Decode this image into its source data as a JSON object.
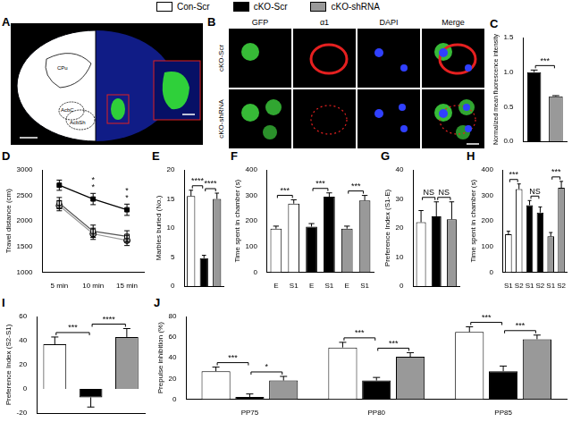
{
  "legend": [
    {
      "name": "Con-Scr",
      "color": "#ffffff"
    },
    {
      "name": "cKO-Scr",
      "color": "#000000"
    },
    {
      "name": "cKO-shRNA",
      "color": "#999999"
    }
  ],
  "images": [
    {
      "panel": "A",
      "labels": [
        "CPu",
        "AcbC",
        "AcbSh"
      ]
    },
    {
      "panel": "B",
      "columns": [
        "GFP",
        "α1",
        "DAPI",
        "Merge"
      ],
      "rows": [
        "cKO-Scr",
        "cKO-shRNA"
      ]
    }
  ],
  "chart_data": [
    {
      "panel": "C",
      "type": "bar",
      "y_label": "Normalized mean fluorescence intensity",
      "categories": [
        null,
        null
      ],
      "values": [
        1,
        0.65
      ],
      "errors": [
        0.03,
        0.01
      ],
      "colors": [
        "#000000",
        "#999999"
      ],
      "ylim": [
        0,
        1.5
      ],
      "yticks": [
        {
          "value": 0,
          "label": "0.0"
        },
        {
          "value": 0.5,
          "label": "0.5"
        },
        {
          "value": 1,
          "label": "1.0"
        },
        {
          "value": 1.5,
          "label": "1.5"
        }
      ],
      "grid": false,
      "tick_labels": "y",
      "annotations": [
        {
          "from": 0,
          "to": 1,
          "text": "***"
        }
      ]
    },
    {
      "panel": "D",
      "type": "line",
      "y_label": "Travel distance (cm)",
      "categories": [
        "5 min",
        "10 min",
        "15 min"
      ],
      "series": [
        {
          "name": "Con-Scr",
          "color": "#ffffff",
          "marker": "square",
          "values": [
            2350,
            1800,
            1700
          ],
          "errors": [
            110,
            120,
            110
          ]
        },
        {
          "name": "cKO-Scr",
          "color": "#000000",
          "marker": "square",
          "values": [
            2700,
            2430,
            2220
          ],
          "errors": [
            100,
            110,
            110
          ]
        },
        {
          "name": "cKO-shRNA",
          "color": "#999999",
          "marker": "circle",
          "values": [
            2300,
            1750,
            1620
          ],
          "errors": [
            100,
            110,
            100
          ]
        }
      ],
      "ylim": [
        1000,
        3000
      ],
      "yticks": [
        1000,
        1500,
        2000,
        2500,
        3000
      ],
      "grid": false,
      "annotations": [
        {
          "index": 1,
          "text": "*"
        },
        {
          "index": 1,
          "text": "*"
        },
        {
          "index": 2,
          "text": "*"
        },
        {
          "index": 2,
          "text": "*"
        }
      ]
    },
    {
      "panel": "E",
      "type": "bar",
      "y_label": "Marbles buried (No.)",
      "categories": [
        null,
        null,
        null
      ],
      "values": [
        15.5,
        4.8,
        15
      ],
      "errors": [
        1,
        0.5,
        1
      ],
      "colors": [
        "#ffffff",
        "#000000",
        "#999999"
      ],
      "ylim": [
        0,
        20
      ],
      "yticks": [
        0,
        5,
        10,
        15,
        20
      ],
      "grid": false,
      "tick_labels": "y",
      "annotations": [
        {
          "from": 0,
          "to": 1,
          "text": "****"
        },
        {
          "from": 1,
          "to": 2,
          "text": "****"
        }
      ]
    },
    {
      "panel": "F",
      "type": "bar",
      "y_label": "Time spent in chamber (s)",
      "categories": [
        "E",
        "S1",
        "E",
        "S1",
        "E",
        "S1"
      ],
      "values": [
        170,
        268,
        178,
        295,
        170,
        280
      ],
      "errors": [
        10,
        15,
        12,
        15,
        10,
        20
      ],
      "colors": [
        "#ffffff",
        "#ffffff",
        "#000000",
        "#000000",
        "#999999",
        "#999999"
      ],
      "ylim": [
        0,
        400
      ],
      "yticks": [
        0,
        100,
        200,
        300,
        400
      ],
      "grid": false,
      "annotations": [
        {
          "from": 0,
          "to": 1,
          "text": "***"
        },
        {
          "from": 2,
          "to": 3,
          "text": "***"
        },
        {
          "from": 4,
          "to": 5,
          "text": "***"
        }
      ]
    },
    {
      "panel": "G",
      "type": "bar",
      "y_label": "Preference Index (S1-E)",
      "categories": [
        null,
        null,
        null
      ],
      "values": [
        22,
        24,
        23
      ],
      "errors": [
        4,
        5,
        6
      ],
      "colors": [
        "#ffffff",
        "#000000",
        "#999999"
      ],
      "ylim": [
        0,
        40
      ],
      "yticks": [
        0,
        10,
        20,
        30,
        40
      ],
      "grid": false,
      "tick_labels": "y",
      "annotations": [
        {
          "from": 0,
          "to": 1,
          "text": "NS"
        },
        {
          "from": 1,
          "to": 2,
          "text": "NS"
        }
      ]
    },
    {
      "panel": "H",
      "type": "bar",
      "y_label": "Time spent in chamber (s)",
      "categories": [
        "S1",
        "S2",
        "S1",
        "S2",
        "S1",
        "S2"
      ],
      "values": [
        148,
        325,
        262,
        233,
        140,
        330
      ],
      "errors": [
        12,
        20,
        18,
        22,
        15,
        25
      ],
      "colors": [
        "#ffffff",
        "#ffffff",
        "#000000",
        "#000000",
        "#999999",
        "#999999"
      ],
      "ylim": [
        0,
        400
      ],
      "yticks": [
        0,
        100,
        200,
        300,
        400
      ],
      "grid": false,
      "annotations": [
        {
          "from": 0,
          "to": 1,
          "text": "***"
        },
        {
          "from": 2,
          "to": 3,
          "text": "NS"
        },
        {
          "from": 4,
          "to": 5,
          "text": "***"
        }
      ]
    },
    {
      "panel": "I",
      "type": "bar",
      "y_label": "Preference Index (S2-S1)",
      "categories": [
        null,
        null,
        null
      ],
      "values": [
        37,
        -7,
        43
      ],
      "errors": [
        6,
        8,
        7
      ],
      "colors": [
        "#ffffff",
        "#000000",
        "#999999"
      ],
      "ylim": [
        -20,
        60
      ],
      "yticks": [
        -20,
        0,
        20,
        40,
        60
      ],
      "grid": false,
      "tick_labels": "y",
      "annotations": [
        {
          "from": 0,
          "to": 1,
          "text": "***"
        },
        {
          "from": 1,
          "to": 2,
          "text": "****"
        }
      ]
    },
    {
      "panel": "J",
      "type": "bar",
      "y_label": "Prepulse inhibition (%)",
      "categories": [
        "PP75",
        "PP80",
        "PP85"
      ],
      "series": [
        {
          "name": "Con-Scr",
          "color": "#ffffff",
          "values": [
            27,
            50,
            65
          ],
          "errors": [
            4,
            5,
            5
          ]
        },
        {
          "name": "cKO-Scr",
          "color": "#000000",
          "values": [
            2,
            18,
            27
          ],
          "errors": [
            3,
            3,
            5
          ]
        },
        {
          "name": "cKO-shRNA",
          "color": "#999999",
          "values": [
            18,
            41,
            58
          ],
          "errors": [
            4,
            4,
            4
          ]
        }
      ],
      "ylim": [
        0,
        80
      ],
      "yticks": [
        0,
        20,
        40,
        60,
        80
      ],
      "grid": false,
      "annotations": [
        {
          "category": 0,
          "from": 0,
          "to": 1,
          "text": "***"
        },
        {
          "category": 0,
          "from": 1,
          "to": 2,
          "text": "*"
        },
        {
          "category": 1,
          "from": 0,
          "to": 1,
          "text": "***"
        },
        {
          "category": 1,
          "from": 1,
          "to": 2,
          "text": "***"
        },
        {
          "category": 2,
          "from": 0,
          "to": 1,
          "text": "***"
        },
        {
          "category": 2,
          "from": 1,
          "to": 2,
          "text": "***"
        }
      ]
    }
  ]
}
